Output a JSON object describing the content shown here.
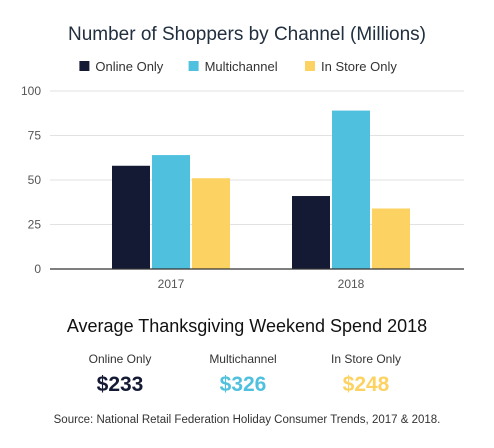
{
  "chart_data": {
    "type": "bar",
    "title": "Number of Shoppers by Channel (Millions)",
    "categories": [
      "2017",
      "2018"
    ],
    "series": [
      {
        "name": "Online Only",
        "values": [
          58,
          41
        ],
        "color": "#141a33"
      },
      {
        "name": "Multichannel",
        "values": [
          64,
          89
        ],
        "color": "#4fc0dd"
      },
      {
        "name": "In Store Only",
        "values": [
          51,
          34
        ],
        "color": "#fcd262"
      }
    ],
    "yticks": [
      0,
      25,
      50,
      75,
      100
    ],
    "ylim": [
      0,
      100
    ],
    "xlabel": "",
    "ylabel": "",
    "grid": true,
    "legend": "top"
  },
  "spend": {
    "title": "Average Thanksgiving Weekend Spend 2018",
    "items": [
      {
        "label": "Online Only",
        "value": "$233",
        "color": "#141a33"
      },
      {
        "label": "Multichannel",
        "value": "$326",
        "color": "#4fc0dd"
      },
      {
        "label": "In Store Only",
        "value": "$248",
        "color": "#fcd262"
      }
    ]
  },
  "source": "Source: National Retail Federation Holiday Consumer Trends, 2017 & 2018."
}
